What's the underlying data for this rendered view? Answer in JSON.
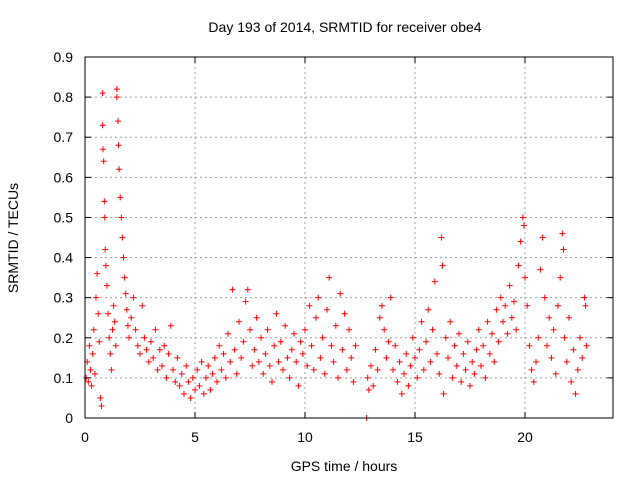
{
  "chart_data": {
    "type": "scatter",
    "title": "Day 193 of 2014, SRMTID for receiver obe4",
    "xlabel": "GPS time / hours",
    "ylabel": "SRMTID / TECUs",
    "xlim": [
      0,
      24
    ],
    "ylim": [
      0,
      0.9
    ],
    "xticks": [
      0,
      5,
      10,
      15,
      20
    ],
    "yticks": [
      0,
      0.1,
      0.2,
      0.3,
      0.4,
      0.5,
      0.6,
      0.7,
      0.8,
      0.9
    ],
    "grid": true,
    "marker": "+",
    "color": "#ff0000",
    "series": [
      {
        "name": "SRMTID",
        "points": [
          [
            0.05,
            0.1
          ],
          [
            0.1,
            0.14
          ],
          [
            0.15,
            0.09
          ],
          [
            0.2,
            0.18
          ],
          [
            0.25,
            0.12
          ],
          [
            0.3,
            0.08
          ],
          [
            0.35,
            0.16
          ],
          [
            0.4,
            0.22
          ],
          [
            0.45,
            0.11
          ],
          [
            0.5,
            0.3
          ],
          [
            0.55,
            0.36
          ],
          [
            0.6,
            0.26
          ],
          [
            0.65,
            0.19
          ],
          [
            0.7,
            0.05
          ],
          [
            0.75,
            0.03
          ],
          [
            0.8,
            0.81
          ],
          [
            0.8,
            0.73
          ],
          [
            0.82,
            0.67
          ],
          [
            0.85,
            0.64
          ],
          [
            0.88,
            0.54
          ],
          [
            0.9,
            0.5
          ],
          [
            0.92,
            0.42
          ],
          [
            0.95,
            0.38
          ],
          [
            1.0,
            0.33
          ],
          [
            1.05,
            0.26
          ],
          [
            1.1,
            0.2
          ],
          [
            1.15,
            0.16
          ],
          [
            1.2,
            0.12
          ],
          [
            1.25,
            0.22
          ],
          [
            1.3,
            0.28
          ],
          [
            1.35,
            0.24
          ],
          [
            1.4,
            0.18
          ],
          [
            1.45,
            0.82
          ],
          [
            1.45,
            0.8
          ],
          [
            1.5,
            0.74
          ],
          [
            1.52,
            0.68
          ],
          [
            1.55,
            0.62
          ],
          [
            1.6,
            0.55
          ],
          [
            1.65,
            0.5
          ],
          [
            1.7,
            0.45
          ],
          [
            1.75,
            0.4
          ],
          [
            1.8,
            0.35
          ],
          [
            1.85,
            0.31
          ],
          [
            1.9,
            0.27
          ],
          [
            1.95,
            0.23
          ],
          [
            2.0,
            0.2
          ],
          [
            2.1,
            0.25
          ],
          [
            2.2,
            0.3
          ],
          [
            2.3,
            0.22
          ],
          [
            2.4,
            0.18
          ],
          [
            2.5,
            0.16
          ],
          [
            2.6,
            0.28
          ],
          [
            2.7,
            0.2
          ],
          [
            2.8,
            0.17
          ],
          [
            2.9,
            0.14
          ],
          [
            3.0,
            0.19
          ],
          [
            3.1,
            0.15
          ],
          [
            3.2,
            0.22
          ],
          [
            3.3,
            0.12
          ],
          [
            3.4,
            0.17
          ],
          [
            3.5,
            0.13
          ],
          [
            3.6,
            0.18
          ],
          [
            3.7,
            0.1
          ],
          [
            3.8,
            0.16
          ],
          [
            3.9,
            0.23
          ],
          [
            4.0,
            0.12
          ],
          [
            4.1,
            0.09
          ],
          [
            4.2,
            0.15
          ],
          [
            4.3,
            0.08
          ],
          [
            4.4,
            0.11
          ],
          [
            4.5,
            0.06
          ],
          [
            4.6,
            0.13
          ],
          [
            4.7,
            0.09
          ],
          [
            4.8,
            0.05
          ],
          [
            4.9,
            0.1
          ],
          [
            5.0,
            0.07
          ],
          [
            5.1,
            0.12
          ],
          [
            5.2,
            0.08
          ],
          [
            5.3,
            0.14
          ],
          [
            5.4,
            0.06
          ],
          [
            5.5,
            0.1
          ],
          [
            5.6,
            0.13
          ],
          [
            5.7,
            0.07
          ],
          [
            5.8,
            0.11
          ],
          [
            5.9,
            0.15
          ],
          [
            6.0,
            0.09
          ],
          [
            6.1,
            0.18
          ],
          [
            6.2,
            0.12
          ],
          [
            6.3,
            0.16
          ],
          [
            6.4,
            0.1
          ],
          [
            6.5,
            0.21
          ],
          [
            6.6,
            0.14
          ],
          [
            6.7,
            0.32
          ],
          [
            6.8,
            0.17
          ],
          [
            6.9,
            0.11
          ],
          [
            7.0,
            0.24
          ],
          [
            7.1,
            0.15
          ],
          [
            7.2,
            0.19
          ],
          [
            7.3,
            0.29
          ],
          [
            7.4,
            0.32
          ],
          [
            7.5,
            0.22
          ],
          [
            7.6,
            0.13
          ],
          [
            7.7,
            0.17
          ],
          [
            7.8,
            0.25
          ],
          [
            7.9,
            0.14
          ],
          [
            8.0,
            0.2
          ],
          [
            8.1,
            0.11
          ],
          [
            8.2,
            0.16
          ],
          [
            8.3,
            0.22
          ],
          [
            8.4,
            0.13
          ],
          [
            8.5,
            0.09
          ],
          [
            8.6,
            0.18
          ],
          [
            8.7,
            0.26
          ],
          [
            8.8,
            0.14
          ],
          [
            8.9,
            0.19
          ],
          [
            9.0,
            0.12
          ],
          [
            9.1,
            0.23
          ],
          [
            9.2,
            0.15
          ],
          [
            9.3,
            0.1
          ],
          [
            9.4,
            0.17
          ],
          [
            9.5,
            0.21
          ],
          [
            9.6,
            0.14
          ],
          [
            9.7,
            0.08
          ],
          [
            9.8,
            0.19
          ],
          [
            9.9,
            0.16
          ],
          [
            10.0,
            0.22
          ],
          [
            10.1,
            0.13
          ],
          [
            10.2,
            0.28
          ],
          [
            10.3,
            0.18
          ],
          [
            10.4,
            0.12
          ],
          [
            10.5,
            0.25
          ],
          [
            10.6,
            0.3
          ],
          [
            10.7,
            0.15
          ],
          [
            10.8,
            0.2
          ],
          [
            10.9,
            0.11
          ],
          [
            11.0,
            0.27
          ],
          [
            11.1,
            0.35
          ],
          [
            11.2,
            0.18
          ],
          [
            11.3,
            0.14
          ],
          [
            11.4,
            0.23
          ],
          [
            11.5,
            0.1
          ],
          [
            11.6,
            0.31
          ],
          [
            11.7,
            0.17
          ],
          [
            11.8,
            0.26
          ],
          [
            11.9,
            0.12
          ],
          [
            12.0,
            0.22
          ],
          [
            12.1,
            0.15
          ],
          [
            12.2,
            0.09
          ],
          [
            12.3,
            0.18
          ],
          [
            12.8,
            0.0
          ],
          [
            12.85,
            0.1
          ],
          [
            12.9,
            0.07
          ],
          [
            13.0,
            0.13
          ],
          [
            13.1,
            0.08
          ],
          [
            13.2,
            0.17
          ],
          [
            13.3,
            0.12
          ],
          [
            13.4,
            0.25
          ],
          [
            13.5,
            0.28
          ],
          [
            13.6,
            0.22
          ],
          [
            13.7,
            0.15
          ],
          [
            13.8,
            0.19
          ],
          [
            13.9,
            0.3
          ],
          [
            14.0,
            0.12
          ],
          [
            14.1,
            0.18
          ],
          [
            14.2,
            0.09
          ],
          [
            14.3,
            0.14
          ],
          [
            14.4,
            0.06
          ],
          [
            14.5,
            0.11
          ],
          [
            14.6,
            0.16
          ],
          [
            14.7,
            0.08
          ],
          [
            14.8,
            0.13
          ],
          [
            14.9,
            0.2
          ],
          [
            15.0,
            0.15
          ],
          [
            15.1,
            0.1
          ],
          [
            15.2,
            0.17
          ],
          [
            15.3,
            0.24
          ],
          [
            15.4,
            0.12
          ],
          [
            15.5,
            0.19
          ],
          [
            15.6,
            0.27
          ],
          [
            15.7,
            0.14
          ],
          [
            15.8,
            0.22
          ],
          [
            15.9,
            0.34
          ],
          [
            16.0,
            0.16
          ],
          [
            16.1,
            0.11
          ],
          [
            16.2,
            0.45
          ],
          [
            16.25,
            0.38
          ],
          [
            16.3,
            0.06
          ],
          [
            16.4,
            0.2
          ],
          [
            16.5,
            0.15
          ],
          [
            16.6,
            0.24
          ],
          [
            16.7,
            0.1
          ],
          [
            16.8,
            0.18
          ],
          [
            16.9,
            0.13
          ],
          [
            17.0,
            0.21
          ],
          [
            17.1,
            0.09
          ],
          [
            17.2,
            0.16
          ],
          [
            17.3,
            0.12
          ],
          [
            17.4,
            0.19
          ],
          [
            17.5,
            0.08
          ],
          [
            17.6,
            0.14
          ],
          [
            17.7,
            0.11
          ],
          [
            17.8,
            0.17
          ],
          [
            17.9,
            0.22
          ],
          [
            18.0,
            0.13
          ],
          [
            18.1,
            0.18
          ],
          [
            18.2,
            0.1
          ],
          [
            18.3,
            0.24
          ],
          [
            18.4,
            0.16
          ],
          [
            18.5,
            0.21
          ],
          [
            18.6,
            0.14
          ],
          [
            18.7,
            0.27
          ],
          [
            18.8,
            0.19
          ],
          [
            18.9,
            0.3
          ],
          [
            19.0,
            0.24
          ],
          [
            19.1,
            0.28
          ],
          [
            19.2,
            0.21
          ],
          [
            19.3,
            0.33
          ],
          [
            19.4,
            0.25
          ],
          [
            19.5,
            0.29
          ],
          [
            19.6,
            0.22
          ],
          [
            19.7,
            0.38
          ],
          [
            19.8,
            0.44
          ],
          [
            19.9,
            0.5
          ],
          [
            19.95,
            0.48
          ],
          [
            20.0,
            0.35
          ],
          [
            20.1,
            0.28
          ],
          [
            20.2,
            0.18
          ],
          [
            20.3,
            0.12
          ],
          [
            20.4,
            0.09
          ],
          [
            20.5,
            0.14
          ],
          [
            20.6,
            0.2
          ],
          [
            20.7,
            0.37
          ],
          [
            20.8,
            0.45
          ],
          [
            20.9,
            0.3
          ],
          [
            21.0,
            0.18
          ],
          [
            21.1,
            0.25
          ],
          [
            21.2,
            0.15
          ],
          [
            21.3,
            0.22
          ],
          [
            21.4,
            0.11
          ],
          [
            21.5,
            0.28
          ],
          [
            21.6,
            0.35
          ],
          [
            21.7,
            0.46
          ],
          [
            21.75,
            0.42
          ],
          [
            21.8,
            0.2
          ],
          [
            21.9,
            0.14
          ],
          [
            22.0,
            0.25
          ],
          [
            22.1,
            0.09
          ],
          [
            22.2,
            0.17
          ],
          [
            22.3,
            0.06
          ],
          [
            22.4,
            0.12
          ],
          [
            22.5,
            0.2
          ],
          [
            22.6,
            0.15
          ],
          [
            22.7,
            0.3
          ],
          [
            22.75,
            0.28
          ],
          [
            22.8,
            0.18
          ]
        ]
      }
    ]
  }
}
